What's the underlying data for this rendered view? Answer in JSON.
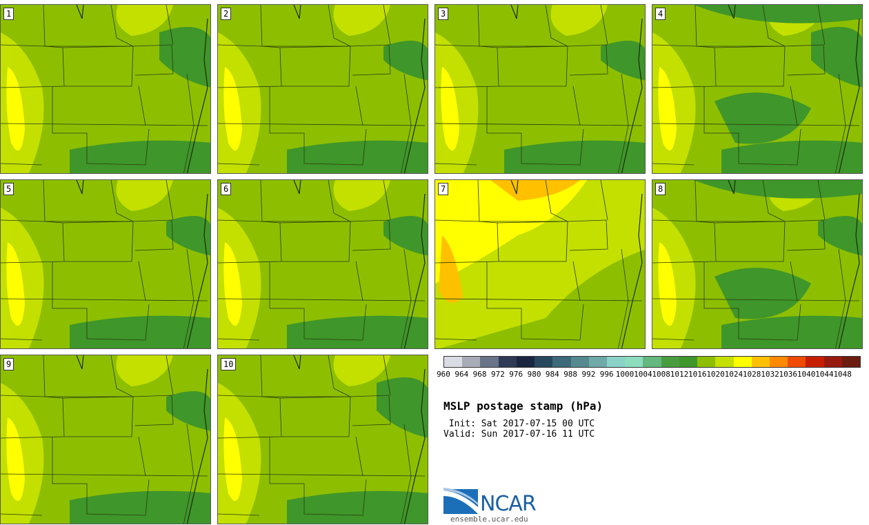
{
  "panels": [
    {
      "label": "1"
    },
    {
      "label": "2"
    },
    {
      "label": "3"
    },
    {
      "label": "4"
    },
    {
      "label": "5"
    },
    {
      "label": "6"
    },
    {
      "label": "7"
    },
    {
      "label": "8"
    },
    {
      "label": "9"
    },
    {
      "label": "10"
    }
  ],
  "colorbar": {
    "levels": [
      "960",
      "964",
      "968",
      "972",
      "976",
      "980",
      "984",
      "988",
      "992",
      "996",
      "1000",
      "1004",
      "1008",
      "1012",
      "1016",
      "1020",
      "1024",
      "1028",
      "1032",
      "1036",
      "1040",
      "1044",
      "1048"
    ],
    "colors": [
      "#d9dde3",
      "#a7acb6",
      "#6a7489",
      "#2f3a55",
      "#1a2640",
      "#27485e",
      "#3e6978",
      "#55898f",
      "#70aaa8",
      "#8bd2c7",
      "#8cdcbe",
      "#63b87d",
      "#4a9d3f",
      "#3f962a",
      "#8dbf00",
      "#c3e000",
      "#ffff00",
      "#ffc000",
      "#ff8a00",
      "#f04a00",
      "#c81e00",
      "#961a10",
      "#6d1c10"
    ]
  },
  "title": "MSLP postage stamp (hPa)",
  "init": " Init: Sat 2017-07-15 00 UTC",
  "valid": "Valid: Sun 2017-07-16 11 UTC",
  "logo": {
    "name": "NCAR",
    "url": "ensemble.ucar.edu"
  }
}
